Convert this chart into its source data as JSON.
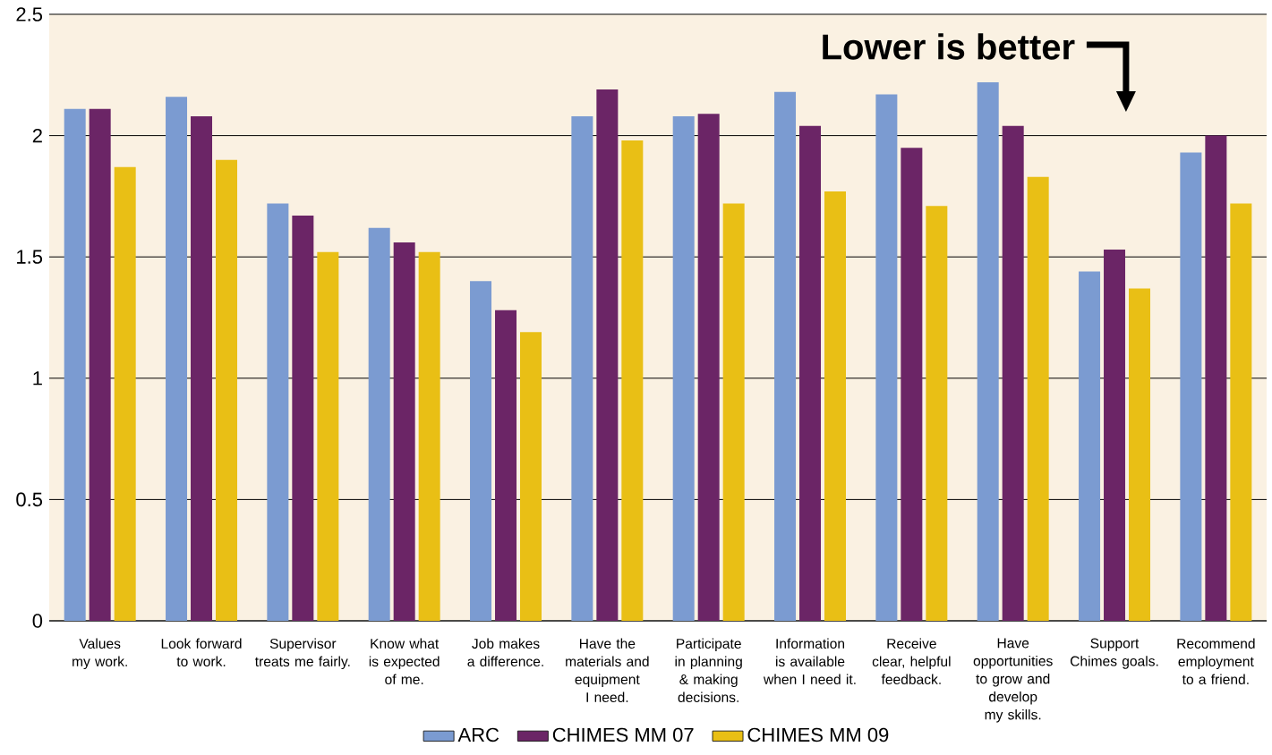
{
  "chart_data": {
    "type": "bar",
    "categories": [
      "Values my work.",
      "Look forward to work.",
      "Supervisor treats me fairly.",
      "Know what is expected of me.",
      "Job makes a difference.",
      "Have the materials and equipment I need.",
      "Participate in planning & making decisions.",
      "Information is available when I need it.",
      "Receive clear, helpful feedback.",
      "Have opportunities to grow and develop my skills.",
      "Support Chimes goals.",
      "Recommend employment to a friend."
    ],
    "series": [
      {
        "name": "ARC",
        "color": "#7b9bd1",
        "values": [
          2.11,
          2.16,
          1.72,
          1.62,
          1.4,
          2.08,
          2.08,
          2.18,
          2.17,
          2.22,
          1.44,
          1.93
        ]
      },
      {
        "name": "CHIMES MM 07",
        "color": "#6b2566",
        "values": [
          2.11,
          2.08,
          1.67,
          1.56,
          1.28,
          2.19,
          2.09,
          2.04,
          1.95,
          2.04,
          1.53,
          2.0
        ]
      },
      {
        "name": "CHIMES MM 09",
        "color": "#e9bf15",
        "values": [
          1.87,
          1.9,
          1.52,
          1.52,
          1.19,
          1.98,
          1.72,
          1.77,
          1.71,
          1.83,
          1.37,
          1.72
        ]
      }
    ],
    "ylim": [
      0,
      2.5
    ],
    "yticks": [
      0,
      0.5,
      1,
      1.5,
      2,
      2.5
    ],
    "grid": "y",
    "legend": "bottom",
    "annotations": [
      "Lower is better"
    ]
  }
}
